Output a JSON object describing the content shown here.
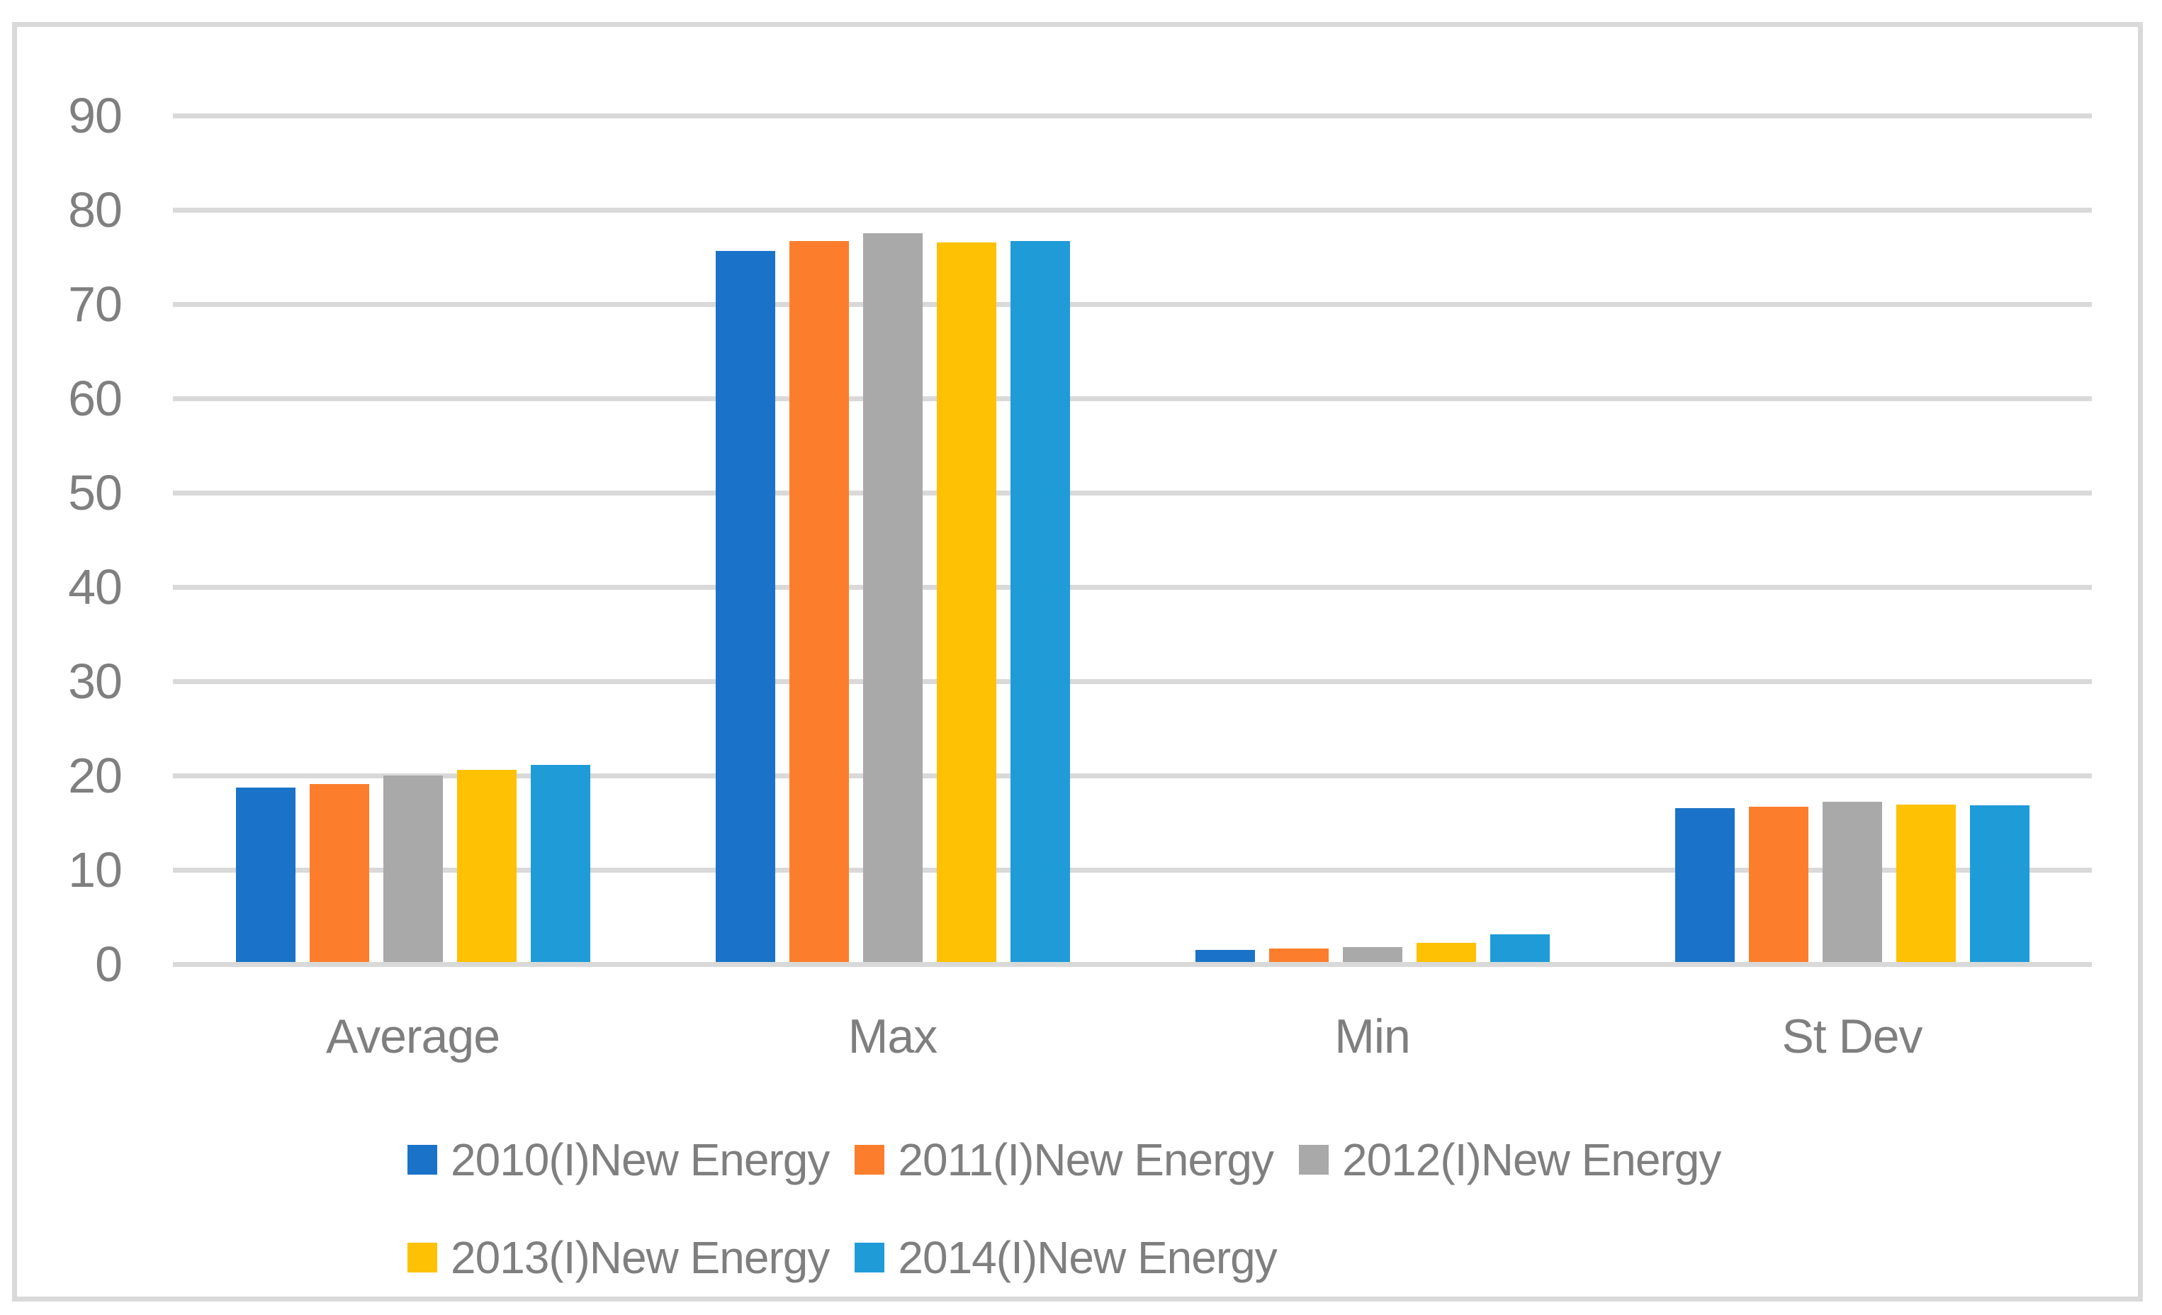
{
  "frame": {
    "border_color": "#d9d9d9",
    "background_color": "#ffffff"
  },
  "chart_data": {
    "type": "bar",
    "title": "",
    "xlabel": "",
    "ylabel": "",
    "categories": [
      "Average",
      "Max",
      "Min",
      "St Dev"
    ],
    "series": [
      {
        "name": "2010(I)New Energy",
        "color": "#1a73c8",
        "values": [
          18.5,
          75.4,
          1.3,
          16.3
        ]
      },
      {
        "name": "2011(I)New Energy",
        "color": "#fc7e2c",
        "values": [
          18.9,
          76.5,
          1.4,
          16.5
        ]
      },
      {
        "name": "2012(I)New Energy",
        "color": "#a9a9a9",
        "values": [
          19.8,
          77.3,
          1.6,
          17.0
        ]
      },
      {
        "name": "2013(I)New Energy",
        "color": "#ffc103",
        "values": [
          20.4,
          76.3,
          2.0,
          16.7
        ]
      },
      {
        "name": "2014(I)New Energy",
        "color": "#1f9cd8",
        "values": [
          20.9,
          76.5,
          2.9,
          16.6
        ]
      }
    ],
    "ylim": [
      0,
      90
    ],
    "yticks": [
      0,
      10,
      20,
      30,
      40,
      50,
      60,
      70,
      80,
      90
    ],
    "grid": true,
    "gridline_color": "#d9d9d9",
    "axis_text_color": "#7f7f7f",
    "legend_position": "bottom",
    "legend_rows": [
      [
        "2010(I)New Energy",
        "2011(I)New Energy",
        "2012(I)New Energy"
      ],
      [
        "2013(I)New Energy",
        "2014(I)New Energy"
      ]
    ]
  }
}
